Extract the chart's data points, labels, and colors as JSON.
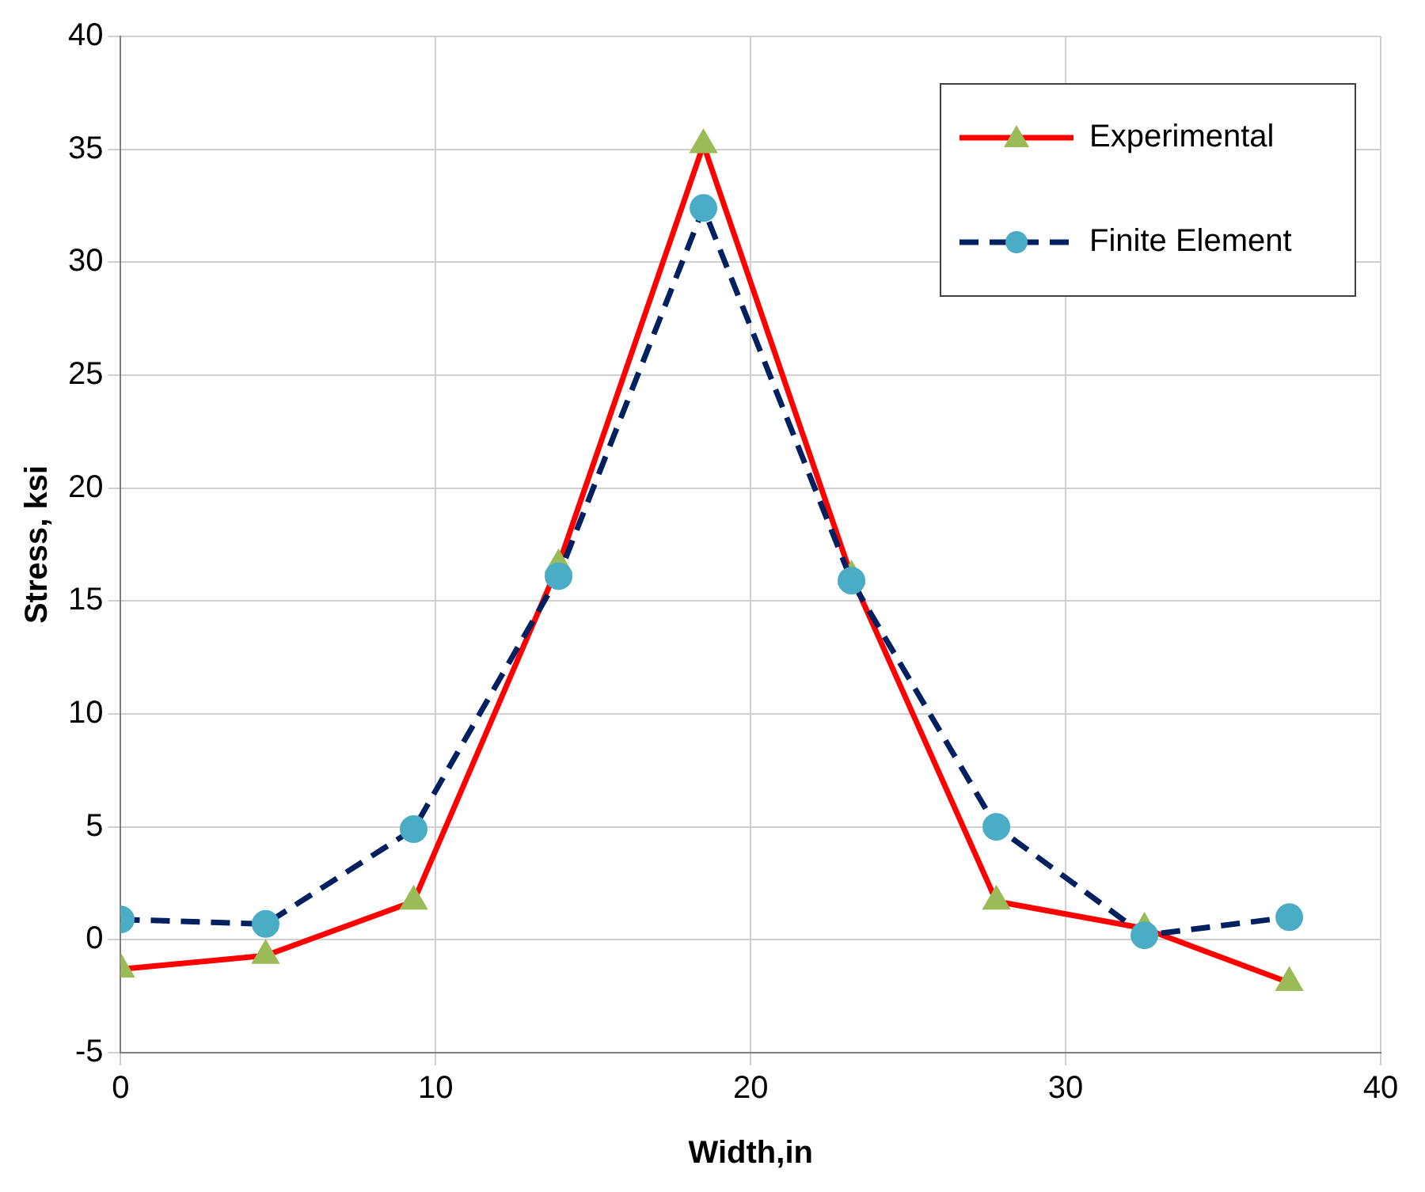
{
  "chart_data": {
    "type": "line",
    "xlabel": "Width,in",
    "ylabel": "Stress, ksi",
    "x": [
      0,
      4.6,
      9.3,
      13.9,
      18.5,
      23.2,
      27.8,
      32.5,
      37.1
    ],
    "series": [
      {
        "name": "Experimental",
        "color": "#ff0000",
        "colors": [
          "#9bbb59",
          "#9bbb59",
          "#9bbb59",
          "#9bbb59",
          "#9bbb59",
          "#9bbb59",
          "#9bbb59",
          "#9bbb59",
          "#9bbb59"
        ],
        "marker": "triangle",
        "line_style": "solid",
        "values": [
          -1.3,
          -0.7,
          1.7,
          16.6,
          35.2,
          16.1,
          1.7,
          0.5,
          -1.9
        ]
      },
      {
        "name": "Finite Element",
        "color": "#002060",
        "colors": [
          "#4bacc6",
          "#4bacc6",
          "#4bacc6",
          "#4bacc6",
          "#4bacc6",
          "#4bacc6",
          "#4bacc6",
          "#4bacc6",
          "#4bacc6"
        ],
        "marker": "circle",
        "line_style": "dashed",
        "values": [
          0.9,
          0.7,
          4.9,
          16.1,
          32.4,
          15.9,
          5.0,
          0.2,
          1.0
        ]
      }
    ],
    "xlim": [
      0,
      40
    ],
    "xticks": [
      0,
      10,
      20,
      30,
      40
    ],
    "ylim": [
      -5,
      40
    ],
    "yticks": [
      -5,
      0,
      5,
      10,
      15,
      20,
      25,
      30,
      35,
      40
    ],
    "grid": true,
    "legend": "top right"
  }
}
